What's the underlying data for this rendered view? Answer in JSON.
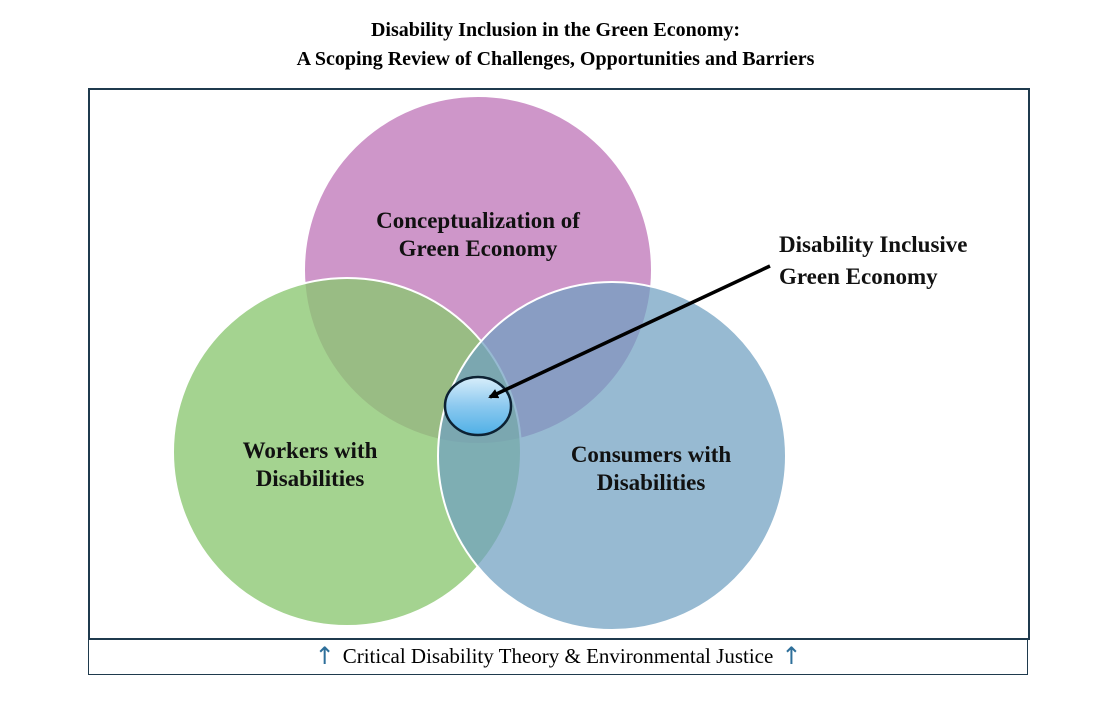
{
  "title": {
    "line1": "Disability Inclusion in the Green Economy:",
    "line2": "A Scoping Review of Challenges, Opportunities and Barriers"
  },
  "circles": {
    "top": {
      "line1": "Conceptualization of",
      "line2": "Green Economy",
      "color": "#c37fbd"
    },
    "left": {
      "line1": "Workers with",
      "line2": "Disabilities",
      "color": "#96cd80"
    },
    "right": {
      "line1": "Consumers with",
      "line2": "Disabilities",
      "color": "#86adc9"
    }
  },
  "callout": {
    "line1": "Disability Inclusive",
    "line2": "Green Economy"
  },
  "footer": {
    "text": "Critical Disability Theory & Environmental Justice",
    "arrow_glyph": "↑"
  },
  "colors": {
    "frame_border": "#1f3a4d",
    "arrow_icon": "#2e6f9a",
    "center_ellipse": "#67b9ea"
  }
}
